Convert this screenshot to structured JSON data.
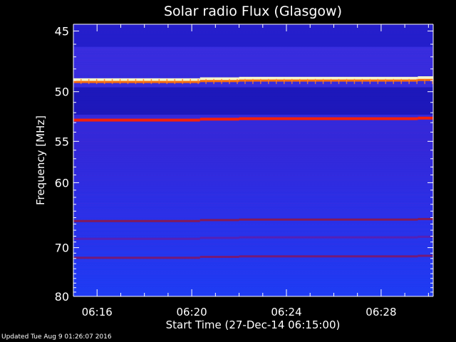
{
  "chart_data": {
    "type": "heatmap",
    "title": "Solar radio Flux (Glasgow)",
    "xlabel": "Start Time (27-Dec-14 06:15:00)",
    "ylabel": "Frequency [MHz]",
    "x_ticks": [
      "06:16",
      "06:20",
      "06:24",
      "06:28"
    ],
    "x_tick_minutes": [
      1,
      5,
      9,
      13
    ],
    "x_range_minutes": [
      0.0,
      15.2
    ],
    "y_ticks": [
      45,
      50,
      55,
      60,
      70,
      80
    ],
    "y_range_mhz": [
      44.5,
      80
    ],
    "y_scale": "reciprocal",
    "time_segments_minutes": [
      0,
      5.35,
      7.0,
      14.55,
      15.2
    ],
    "bands": [
      {
        "freq_mhz": 48.8,
        "intensity": "saturated",
        "color": "#ffffc8"
      },
      {
        "freq_mhz": 49.0,
        "intensity": "very-high",
        "color": "#ff7000"
      },
      {
        "freq_mhz": 52.6,
        "intensity": "high",
        "color": "#ff2000"
      },
      {
        "freq_mhz": 65.3,
        "intensity": "medium",
        "color": "#8a1850"
      },
      {
        "freq_mhz": 68.2,
        "intensity": "low",
        "color": "#6a18a0"
      },
      {
        "freq_mhz": 71.6,
        "intensity": "medium",
        "color": "#7a1870"
      }
    ],
    "background_color": "#3428d8",
    "grid": false,
    "legend": "none"
  },
  "footer": {
    "updated": "Updated Tue Aug  9 01:26:07 2016"
  }
}
